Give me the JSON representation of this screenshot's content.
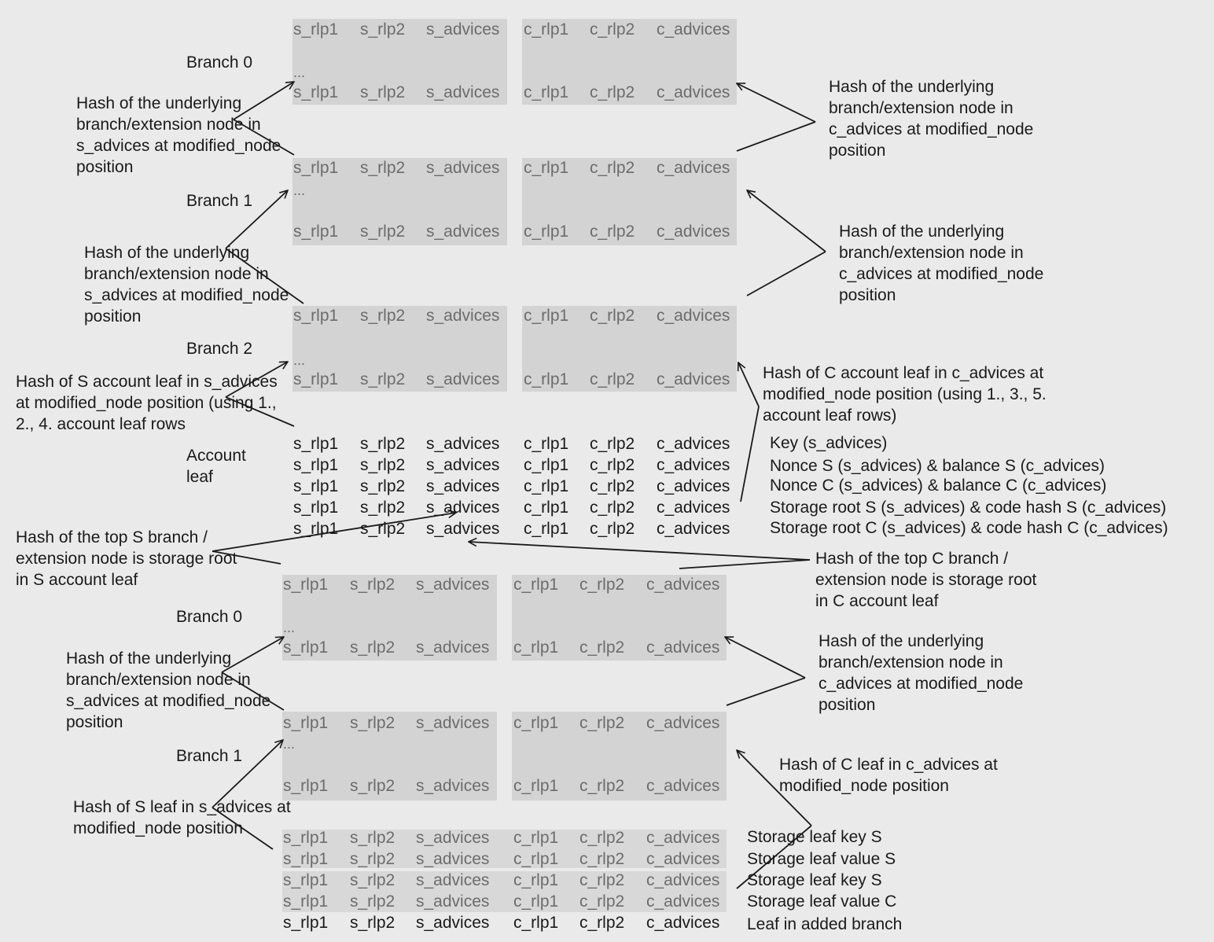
{
  "columns": {
    "s_rlp1": "s_rlp1",
    "s_rlp2": "s_rlp2",
    "s_advices": "s_advices",
    "c_rlp1": "c_rlp1",
    "c_rlp2": "c_rlp2",
    "c_advices": "c_advices"
  },
  "ellipsis": "...",
  "labels": {
    "branch0": "Branch 0",
    "branch1": "Branch 1",
    "branch2": "Branch 2",
    "account_leaf_1": "Account",
    "account_leaf_2": "leaf"
  },
  "left_notes": {
    "n1": "Hash of the underlying\nbranch/extension node in\ns_advices at modified_node\nposition",
    "n2": "Hash of the underlying\nbranch/extension node in\ns_advices at modified_node\nposition",
    "n3": "Hash of S account leaf in s_advices\nat modified_node position (using 1.,\n2., 4. account leaf rows",
    "n4": "Hash of the top S branch /\nextension node is storage root\nin S account leaf",
    "n5": "Hash of the underlying\nbranch/extension node in\ns_advices at modified_node\nposition",
    "n6": "Hash of S leaf in s_advices at\nmodified_node position"
  },
  "right_notes": {
    "n1": "Hash of the underlying\nbranch/extension node in\nc_advices at modified_node\nposition",
    "n2": "Hash of the underlying\nbranch/extension node in\nc_advices at modified_node\nposition",
    "n3": "Hash of C account leaf in c_advices at\nmodified_node position (using 1., 3., 5.\naccount leaf rows)",
    "n4": "Hash of the top C branch /\nextension node is storage root\nin C account leaf",
    "n5": "Hash of the underlying\nbranch/extension node in\nc_advices at modified_node\nposition",
    "n6": "Hash of C leaf in c_advices at\nmodified_node position"
  },
  "account_rows": [
    "Key (s_advices)",
    "Nonce S (s_advices) & balance S (c_advices)",
    "Nonce C (s_advices) & balance C (c_advices)",
    "Storage root S (s_advices) & code  hash S (c_advices)",
    "Storage root C (s_advices) & code  hash C (c_advices)"
  ],
  "storage_rows": [
    "Storage leaf key S",
    "Storage leaf value S",
    "Storage leaf key S",
    "Storage leaf value C",
    "Leaf in added branch"
  ]
}
